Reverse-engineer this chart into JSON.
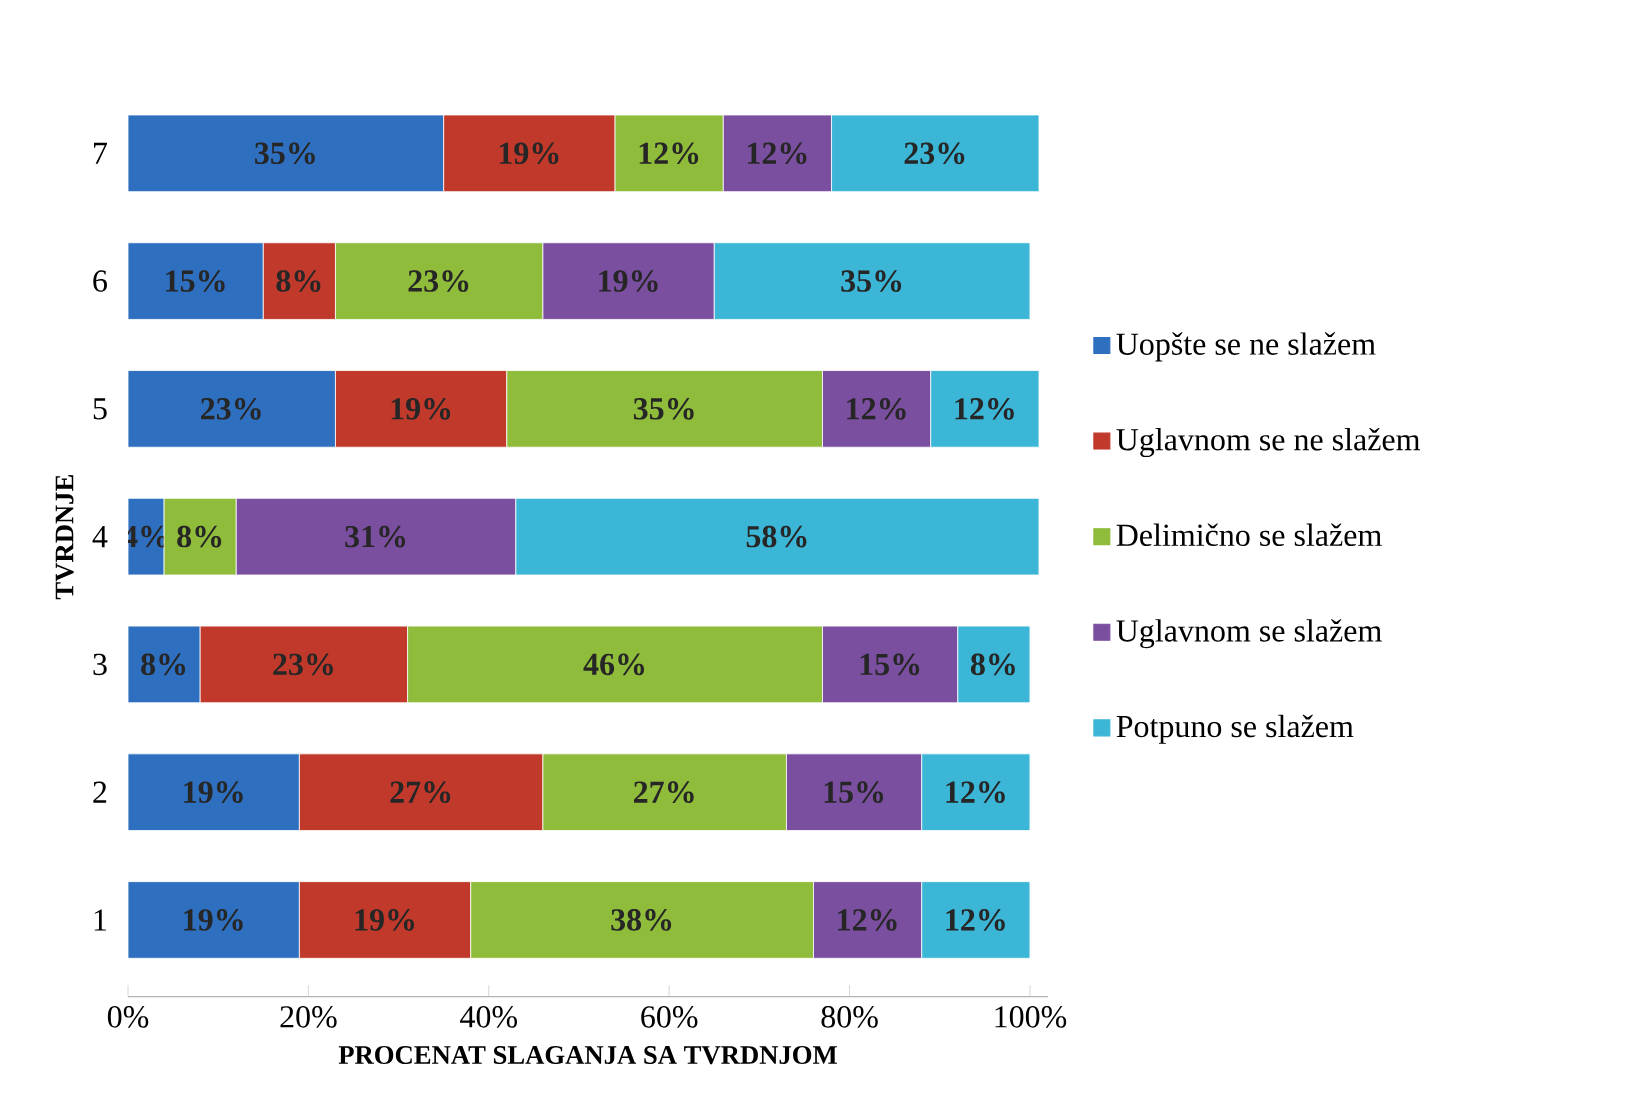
{
  "chart_data": {
    "type": "bar",
    "orientation": "horizontal",
    "stacked": true,
    "xlabel": "PROCENAT SLAGANJA SA TVRDNJOM",
    "ylabel": "TVRDNJE",
    "categories": [
      "7",
      "6",
      "5",
      "4",
      "3",
      "2",
      "1"
    ],
    "xlim": [
      0,
      102
    ],
    "xticks": [
      {
        "value": 0,
        "label": "0%"
      },
      {
        "value": 20,
        "label": "20%"
      },
      {
        "value": 40,
        "label": "40%"
      },
      {
        "value": 60,
        "label": "60%"
      },
      {
        "value": 80,
        "label": "80%"
      },
      {
        "value": 100,
        "label": "100%"
      }
    ],
    "legend": "right",
    "grid": false,
    "series": [
      {
        "name": "Uopšte se ne slažem",
        "color": "#2e6fbf",
        "values": [
          35,
          15,
          23,
          4,
          8,
          19,
          19
        ],
        "value_labels": [
          "35%",
          "15%",
          "23%",
          "4%",
          "8%",
          "19%",
          "19%"
        ]
      },
      {
        "name": "Uglavnom se ne slažem",
        "color": "#c0392b",
        "values": [
          19,
          8,
          19,
          null,
          23,
          27,
          19
        ],
        "value_labels": [
          "19%",
          "8%",
          "19%",
          null,
          "23%",
          "27%",
          "19%"
        ]
      },
      {
        "name": "Delimično se slažem",
        "color": "#8fbc3a",
        "values": [
          12,
          23,
          35,
          8,
          46,
          27,
          38
        ],
        "value_labels": [
          "12%",
          "23%",
          "35%",
          "8%",
          "46%",
          "27%",
          "38%"
        ]
      },
      {
        "name": "Uglavnom se slažem",
        "color": "#7b4fa0",
        "values": [
          12,
          19,
          12,
          31,
          15,
          15,
          12
        ],
        "value_labels": [
          "12%",
          "19%",
          "12%",
          "31%",
          "15%",
          "15%",
          "12%"
        ]
      },
      {
        "name": "Potpuno se slažem",
        "color": "#3bb6d6",
        "values": [
          23,
          35,
          12,
          58,
          8,
          12,
          12
        ],
        "value_labels": [
          "23%",
          "35%",
          "12%",
          "58%",
          "8%",
          "12%",
          "12%"
        ]
      }
    ]
  }
}
